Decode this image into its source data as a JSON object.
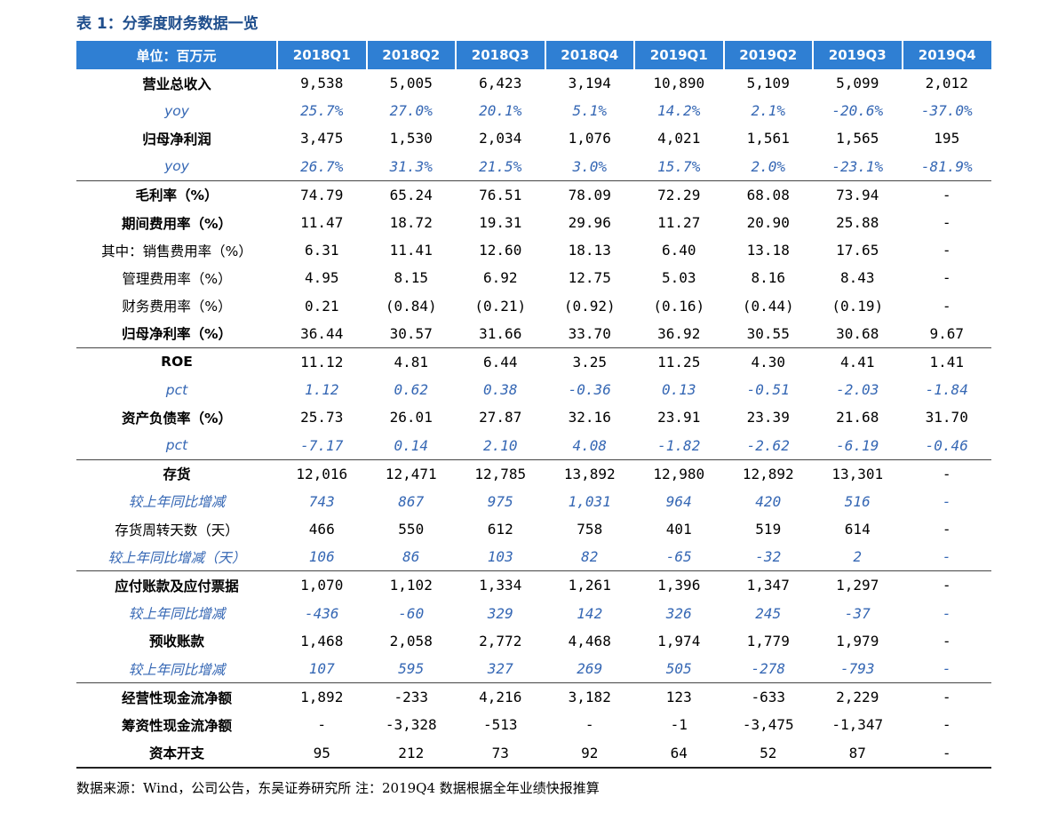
{
  "title": "表 1：分季度财务数据一览",
  "header": [
    "单位：百万元",
    "2018Q1",
    "2018Q2",
    "2018Q3",
    "2018Q4",
    "2019Q1",
    "2019Q2",
    "2019Q3",
    "2019Q4"
  ],
  "rows": [
    {
      "label": "营业总收入",
      "style": "bold",
      "values": [
        "9,538",
        "5,005",
        "6,423",
        "3,194",
        "10,890",
        "5,109",
        "5,099",
        "2,012"
      ]
    },
    {
      "label": "yoy",
      "style": "sub",
      "values": [
        "25.7%",
        "27.0%",
        "20.1%",
        "5.1%",
        "14.2%",
        "2.1%",
        "-20.6%",
        "-37.0%"
      ]
    },
    {
      "label": "归母净利润",
      "style": "bold",
      "values": [
        "3,475",
        "1,530",
        "2,034",
        "1,076",
        "4,021",
        "1,561",
        "1,565",
        "195"
      ]
    },
    {
      "label": "yoy",
      "style": "sub",
      "values": [
        "26.7%",
        "31.3%",
        "21.5%",
        "3.0%",
        "15.7%",
        "2.0%",
        "-23.1%",
        "-81.9%"
      ]
    },
    {
      "label": "毛利率（%）",
      "style": "bold",
      "group_start": true,
      "values": [
        "74.79",
        "65.24",
        "76.51",
        "78.09",
        "72.29",
        "68.08",
        "73.94",
        "-"
      ]
    },
    {
      "label": "期间费用率（%）",
      "style": "bold",
      "values": [
        "11.47",
        "18.72",
        "19.31",
        "29.96",
        "11.27",
        "20.90",
        "25.88",
        "-"
      ]
    },
    {
      "label": "其中：销售费用率（%）",
      "style": "plain",
      "values": [
        "6.31",
        "11.41",
        "12.60",
        "18.13",
        "6.40",
        "13.18",
        "17.65",
        "-"
      ]
    },
    {
      "label": "管理费用率（%）",
      "style": "plain",
      "values": [
        "4.95",
        "8.15",
        "6.92",
        "12.75",
        "5.03",
        "8.16",
        "8.43",
        "-"
      ]
    },
    {
      "label": "财务费用率（%）",
      "style": "plain",
      "values": [
        "0.21",
        "(0.84)",
        "(0.21)",
        "(0.92)",
        "(0.16)",
        "(0.44)",
        "(0.19)",
        "-"
      ]
    },
    {
      "label": "归母净利率（%）",
      "style": "bold",
      "values": [
        "36.44",
        "30.57",
        "31.66",
        "33.70",
        "36.92",
        "30.55",
        "30.68",
        "9.67"
      ]
    },
    {
      "label": "ROE",
      "style": "bold",
      "group_start": true,
      "values": [
        "11.12",
        "4.81",
        "6.44",
        "3.25",
        "11.25",
        "4.30",
        "4.41",
        "1.41"
      ]
    },
    {
      "label": "pct",
      "style": "sub",
      "values": [
        "1.12",
        "0.62",
        "0.38",
        "-0.36",
        "0.13",
        "-0.51",
        "-2.03",
        "-1.84"
      ]
    },
    {
      "label": "资产负债率（%）",
      "style": "bold",
      "values": [
        "25.73",
        "26.01",
        "27.87",
        "32.16",
        "23.91",
        "23.39",
        "21.68",
        "31.70"
      ]
    },
    {
      "label": "pct",
      "style": "sub",
      "values": [
        "-7.17",
        "0.14",
        "2.10",
        "4.08",
        "-1.82",
        "-2.62",
        "-6.19",
        "-0.46"
      ]
    },
    {
      "label": "存货",
      "style": "bold",
      "group_start": true,
      "values": [
        "12,016",
        "12,471",
        "12,785",
        "13,892",
        "12,980",
        "12,892",
        "13,301",
        "-"
      ]
    },
    {
      "label": "较上年同比增减",
      "style": "sub",
      "values": [
        "743",
        "867",
        "975",
        "1,031",
        "964",
        "420",
        "516",
        "-"
      ]
    },
    {
      "label": "存货周转天数（天）",
      "style": "plain",
      "values": [
        "466",
        "550",
        "612",
        "758",
        "401",
        "519",
        "614",
        "-"
      ]
    },
    {
      "label": "较上年同比增减（天）",
      "style": "sub",
      "values": [
        "106",
        "86",
        "103",
        "82",
        "-65",
        "-32",
        "2",
        "-"
      ]
    },
    {
      "label": "应付账款及应付票据",
      "style": "bold",
      "group_start": true,
      "values": [
        "1,070",
        "1,102",
        "1,334",
        "1,261",
        "1,396",
        "1,347",
        "1,297",
        "-"
      ]
    },
    {
      "label": "较上年同比增减",
      "style": "sub",
      "values": [
        "-436",
        "-60",
        "329",
        "142",
        "326",
        "245",
        "-37",
        "-"
      ]
    },
    {
      "label": "预收账款",
      "style": "bold",
      "values": [
        "1,468",
        "2,058",
        "2,772",
        "4,468",
        "1,974",
        "1,779",
        "1,979",
        "-"
      ]
    },
    {
      "label": "较上年同比增减",
      "style": "sub",
      "values": [
        "107",
        "595",
        "327",
        "269",
        "505",
        "-278",
        "-793",
        "-"
      ]
    },
    {
      "label": "经营性现金流净额",
      "style": "bold",
      "group_start": true,
      "values": [
        "1,892",
        "-233",
        "4,216",
        "3,182",
        "123",
        "-633",
        "2,229",
        "-"
      ]
    },
    {
      "label": "筹资性现金流净额",
      "style": "bold",
      "values": [
        "-",
        "-3,328",
        "-513",
        "-",
        "-1",
        "-3,475",
        "-1,347",
        "-"
      ]
    },
    {
      "label": "资本开支",
      "style": "bold",
      "values": [
        "95",
        "212",
        "73",
        "92",
        "64",
        "52",
        "87",
        "-"
      ]
    }
  ],
  "footer": "数据来源：Wind，公司公告，东吴证券研究所 注：2019Q4 数据根据全年业绩快报推算"
}
